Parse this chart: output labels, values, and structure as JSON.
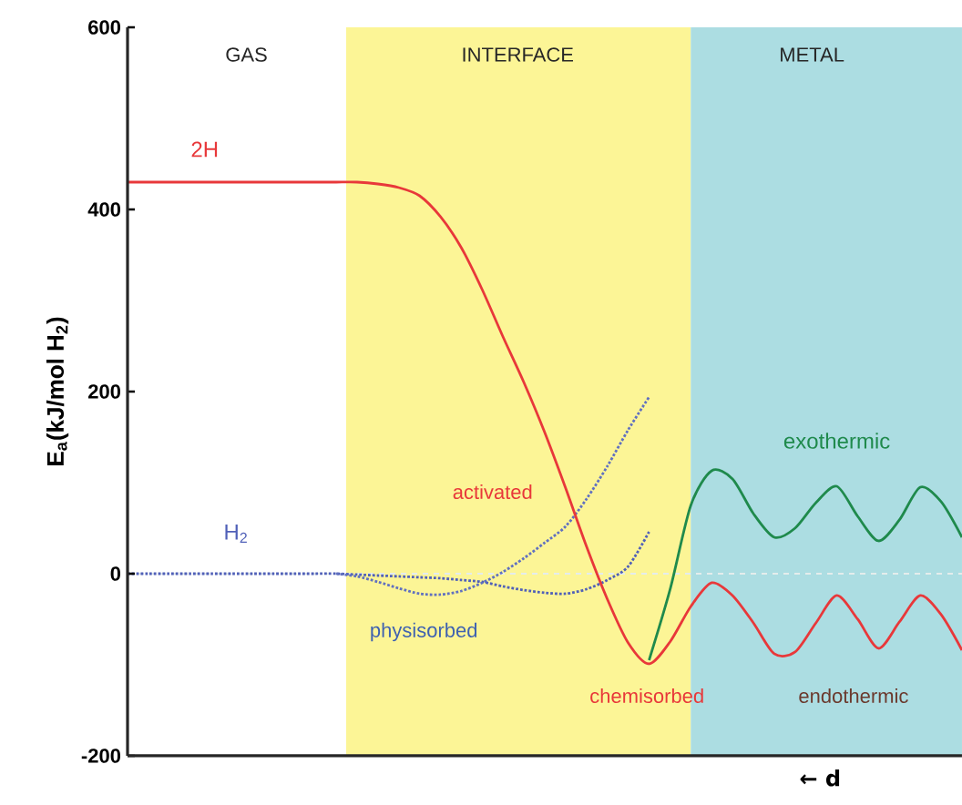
{
  "chart_data": {
    "type": "line",
    "xlabel": "← d",
    "ylabel": "E$_{a}$(kJ/mol H$_{2}$)",
    "categories": [
      null,
      null,
      null,
      null,
      null,
      null,
      null,
      null,
      null,
      null,
      null,
      null,
      null,
      null,
      null,
      null,
      null,
      null,
      null,
      null,
      null,
      null,
      null,
      null,
      null,
      null,
      null,
      null,
      null,
      null,
      null,
      null,
      null,
      null,
      null,
      null,
      null,
      null,
      null,
      null,
      null
    ],
    "ylim": [
      -200,
      600
    ],
    "yticks": [
      -200,
      0,
      200,
      400,
      600
    ],
    "tick_labels": "y",
    "ref_lines": [
      {
        "axis": "y",
        "value": 0,
        "color": "#e4ecec",
        "line_style": "dashed"
      }
    ],
    "series": [
      {
        "name": "H$_{2}$",
        "color": "#5060b8",
        "line_style": "dotted",
        "values": [
          0,
          0,
          0,
          0,
          0,
          0,
          0,
          0,
          0,
          0,
          0,
          -1,
          -2,
          -3,
          -4,
          -5,
          -7,
          -9,
          -14,
          -18,
          -21,
          -22,
          -17,
          -7,
          8,
          46,
          null,
          null,
          null,
          null,
          null,
          null,
          null,
          null,
          null,
          null,
          null,
          null,
          null,
          null,
          null
        ]
      },
      {
        "color": "#6070c0",
        "line_style": "dotted",
        "values": [
          null,
          null,
          null,
          null,
          null,
          null,
          null,
          null,
          null,
          null,
          0,
          -3,
          -9,
          -16,
          -22,
          -23,
          -19,
          -10,
          2,
          17,
          34,
          52,
          82,
          118,
          158,
          194,
          null,
          null,
          null,
          null,
          null,
          null,
          null,
          null,
          null,
          null,
          null,
          null,
          null,
          null,
          null
        ]
      },
      {
        "name": "2H",
        "color": "#e8383a",
        "line_style": "solid",
        "values": [
          430,
          430,
          430,
          430,
          430,
          430,
          430,
          430,
          430,
          430,
          430,
          430,
          428,
          424,
          415,
          392,
          358,
          312,
          260,
          210,
          155,
          94,
          30,
          -28,
          -76,
          -99,
          -75,
          -36,
          -10,
          -24,
          -54,
          -88,
          -86,
          -54,
          -24,
          -50,
          -82,
          -53,
          -24,
          -45,
          -84
        ]
      },
      {
        "name": "exothermic",
        "color": "#1f8a4c",
        "line_style": "solid",
        "values": [
          null,
          null,
          null,
          null,
          null,
          null,
          null,
          null,
          null,
          null,
          null,
          null,
          null,
          null,
          null,
          null,
          null,
          null,
          null,
          null,
          null,
          null,
          null,
          null,
          null,
          -95,
          -18,
          75,
          113,
          104,
          66,
          40,
          50,
          78,
          96,
          63,
          36,
          59,
          95,
          79,
          40
        ]
      }
    ],
    "annotations": [
      "GAS",
      "INTERFACE",
      "METAL",
      "activated",
      "physisorbed",
      "chemisorbed",
      "endothermic"
    ]
  }
}
